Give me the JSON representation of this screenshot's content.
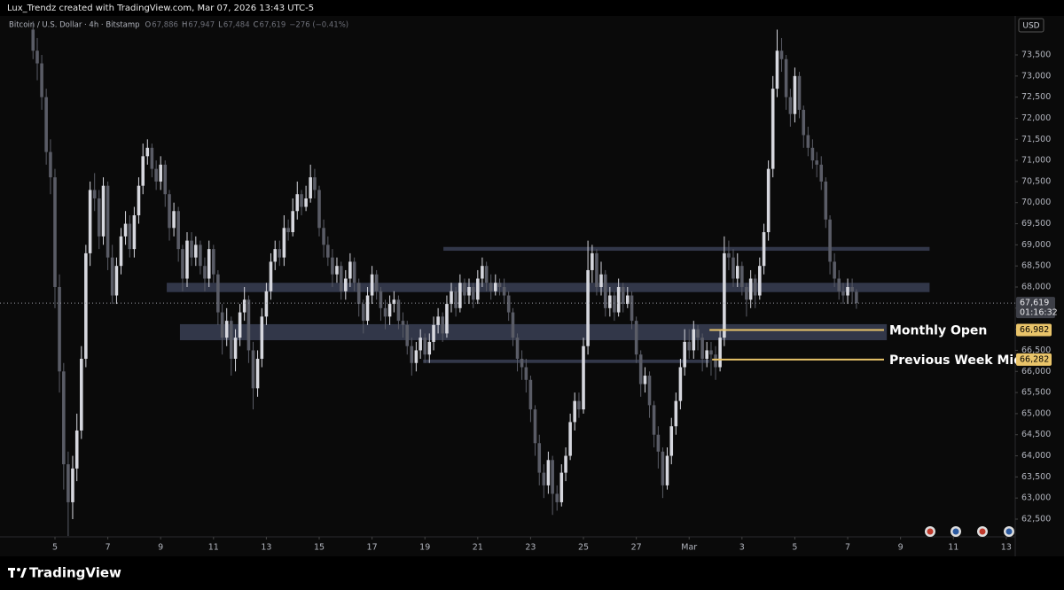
{
  "header": {
    "credit": "Lux_Trendz created with TradingView.com, Mar 07, 2026 13:43 UTC-5",
    "symbol": "Bitcoin / U.S. Dollar · 4h · Bitstamp",
    "ohlc": [
      [
        "O",
        "67,886"
      ],
      [
        "H",
        "67,947"
      ],
      [
        "L",
        "67,484"
      ],
      [
        "C",
        "67,619"
      ]
    ],
    "change": "−276 (−0.41%)"
  },
  "footer": {
    "brand": "TradingView"
  },
  "chart_data": {
    "type": "candlestick",
    "currency": "USD",
    "up_color": "#d6d7de",
    "down_color": "#5a5c66",
    "x": [
      4.17,
      4.33,
      4.5,
      4.67,
      4.83,
      5,
      5.17,
      5.33,
      5.5,
      5.67,
      5.83,
      6,
      6.17,
      6.33,
      6.5,
      6.67,
      6.83,
      7,
      7.17,
      7.33,
      7.5,
      7.67,
      7.83,
      8,
      8.17,
      8.33,
      8.5,
      8.67,
      8.83,
      9,
      9.17,
      9.33,
      9.5,
      9.67,
      9.83,
      10,
      10.17,
      10.33,
      10.5,
      10.67,
      10.83,
      11,
      11.17,
      11.33,
      11.5,
      11.67,
      11.83,
      12,
      12.17,
      12.33,
      12.5,
      12.67,
      12.83,
      13,
      13.17,
      13.33,
      13.5,
      13.67,
      13.83,
      14,
      14.17,
      14.33,
      14.5,
      14.67,
      14.83,
      15,
      15.17,
      15.33,
      15.5,
      15.67,
      15.83,
      16,
      16.17,
      16.33,
      16.5,
      16.67,
      16.83,
      17,
      17.17,
      17.33,
      17.5,
      17.67,
      17.83,
      18,
      18.17,
      18.33,
      18.5,
      18.67,
      18.83,
      19,
      19.17,
      19.33,
      19.5,
      19.67,
      19.83,
      20,
      20.17,
      20.33,
      20.5,
      20.67,
      20.83,
      21,
      21.17,
      21.33,
      21.5,
      21.67,
      21.83,
      22,
      22.17,
      22.33,
      22.5,
      22.67,
      22.83,
      23,
      23.17,
      23.33,
      23.5,
      23.67,
      23.83,
      24,
      24.17,
      24.33,
      24.5,
      24.67,
      24.83,
      25,
      25.17,
      25.33,
      25.5,
      25.67,
      25.83,
      26,
      26.17,
      26.33,
      26.5,
      26.67,
      26.83,
      27,
      27.17,
      27.33,
      27.5,
      27.67,
      27.83,
      28,
      28.17,
      28.33,
      28.5,
      28.67,
      28.83,
      29,
      29.17,
      29.33,
      29.5,
      29.67,
      29.83,
      30,
      30.17,
      30.33,
      30.5,
      30.67,
      30.83,
      31,
      31.17,
      31.33,
      31.5,
      31.67,
      31.83,
      32,
      32.17,
      32.33,
      32.5,
      32.67,
      32.83,
      33,
      33.17,
      33.33,
      33.5,
      33.67,
      33.83,
      34,
      34.17,
      34.33,
      34.5,
      34.67,
      34.83,
      35,
      35.17,
      35.33
    ],
    "open": [
      74100,
      73600,
      73300,
      72500,
      71200,
      70600,
      68000,
      66000,
      63800,
      62900,
      63700,
      64600,
      66300,
      68800,
      70300,
      70100,
      69200,
      70400,
      68700,
      67800,
      68500,
      69200,
      69500,
      68900,
      69700,
      70400,
      71100,
      71300,
      70800,
      70500,
      70900,
      70200,
      69400,
      69800,
      68900,
      68200,
      69100,
      68700,
      69000,
      68500,
      68200,
      68900,
      68300,
      67400,
      66800,
      67200,
      66300,
      66800,
      67400,
      67700,
      66500,
      65600,
      66300,
      67300,
      67900,
      68600,
      68900,
      68700,
      69400,
      69300,
      69800,
      70200,
      69900,
      70100,
      70600,
      70300,
      69400,
      69000,
      68700,
      68300,
      68500,
      67900,
      68200,
      68600,
      68100,
      67600,
      67200,
      67800,
      68300,
      67900,
      67500,
      67300,
      67600,
      67700,
      67200,
      67100,
      66600,
      66200,
      66500,
      66800,
      66400,
      66700,
      67100,
      67300,
      66900,
      67600,
      67900,
      67500,
      68100,
      67800,
      68000,
      67700,
      68200,
      68500,
      68100,
      67900,
      68100,
      68000,
      67800,
      67400,
      66800,
      66300,
      66100,
      65800,
      65100,
      64300,
      63600,
      63300,
      63900,
      63100,
      62900,
      63600,
      64000,
      64800,
      65300,
      65100,
      66600,
      68400,
      68800,
      68000,
      68300,
      67500,
      67800,
      67400,
      68000,
      67600,
      67800,
      67200,
      66400,
      65700,
      65900,
      65200,
      64500,
      64100,
      63300,
      64000,
      64700,
      65300,
      66100,
      66700,
      66500,
      67000,
      66800,
      66300,
      66500,
      66400,
      66100,
      66800,
      68800,
      68700,
      68200,
      68500,
      68000,
      67700,
      68200,
      67800,
      68500,
      69300,
      70800,
      72700,
      73600,
      73400,
      72500,
      72100,
      73000,
      72200,
      71600,
      71300,
      71000,
      70900,
      70500,
      69600,
      68600,
      68200,
      67900,
      67800,
      68000,
      67886
    ],
    "high": [
      74300,
      73900,
      73500,
      72700,
      71500,
      70800,
      68300,
      66200,
      64100,
      64000,
      65000,
      66600,
      69000,
      70500,
      70700,
      70300,
      70600,
      70500,
      69000,
      68700,
      69400,
      69800,
      69700,
      69900,
      70600,
      71400,
      71500,
      71400,
      71000,
      71100,
      71000,
      70300,
      70000,
      69900,
      69000,
      69300,
      69300,
      69200,
      69100,
      68700,
      69100,
      69000,
      68400,
      67600,
      67500,
      67300,
      67000,
      67600,
      68000,
      67800,
      66700,
      66500,
      67500,
      68100,
      68800,
      69100,
      69100,
      69700,
      69600,
      70100,
      70500,
      70300,
      70400,
      70900,
      70800,
      70400,
      69600,
      69200,
      68900,
      68700,
      68600,
      68400,
      68800,
      68700,
      68200,
      67700,
      68000,
      68500,
      68400,
      68000,
      67700,
      67800,
      67900,
      67800,
      67400,
      67200,
      66800,
      66700,
      67000,
      66900,
      66900,
      67300,
      67500,
      67400,
      67800,
      68100,
      68000,
      68300,
      68200,
      68200,
      68100,
      68400,
      68700,
      68600,
      68300,
      68300,
      68200,
      68200,
      67900,
      67500,
      66900,
      66500,
      66300,
      65900,
      65200,
      64500,
      63800,
      64100,
      64000,
      63300,
      63800,
      64200,
      65000,
      65500,
      65500,
      66800,
      69100,
      69000,
      68900,
      68600,
      68400,
      68000,
      67900,
      68200,
      68100,
      68000,
      67900,
      67300,
      66500,
      66100,
      66000,
      65300,
      64700,
      64200,
      64200,
      64900,
      65500,
      66300,
      67000,
      67000,
      67200,
      67100,
      66900,
      66700,
      66700,
      66600,
      67000,
      69200,
      69100,
      68900,
      68800,
      68600,
      68100,
      68400,
      68300,
      68700,
      69500,
      71000,
      73000,
      74100,
      73900,
      73500,
      72700,
      73200,
      73100,
      72300,
      71800,
      71500,
      71200,
      71100,
      70600,
      69700,
      68800,
      68400,
      68100,
      68200,
      68200,
      67947
    ],
    "low": [
      73400,
      72900,
      72200,
      70900,
      70200,
      67500,
      65500,
      63200,
      62100,
      62500,
      63400,
      64400,
      66100,
      68500,
      69800,
      68900,
      69000,
      68400,
      67600,
      67600,
      68300,
      69000,
      68700,
      68700,
      69500,
      70200,
      70900,
      70600,
      70300,
      70300,
      69900,
      69100,
      69200,
      68600,
      67900,
      68000,
      68500,
      68500,
      68300,
      67900,
      68000,
      68100,
      67100,
      66400,
      66600,
      65900,
      66000,
      66600,
      67200,
      66200,
      65100,
      65400,
      66100,
      67100,
      67700,
      68400,
      68500,
      68500,
      69100,
      69200,
      69600,
      69700,
      69800,
      70000,
      70100,
      69200,
      68700,
      68500,
      68000,
      68100,
      67700,
      67700,
      68000,
      67900,
      67300,
      66900,
      67100,
      67600,
      67700,
      67200,
      67000,
      67100,
      67400,
      67000,
      66800,
      66400,
      65900,
      66000,
      66300,
      66200,
      66200,
      66500,
      66900,
      66700,
      66800,
      67400,
      67300,
      67400,
      67600,
      67600,
      67500,
      67600,
      68000,
      67900,
      67700,
      67800,
      67800,
      67600,
      67200,
      66600,
      66000,
      65800,
      65500,
      64800,
      64000,
      63300,
      63000,
      63100,
      62600,
      62700,
      62800,
      63400,
      63900,
      64600,
      64900,
      65000,
      66400,
      68100,
      67800,
      67800,
      67300,
      67300,
      67200,
      67300,
      67400,
      67500,
      67000,
      66200,
      65400,
      65500,
      64900,
      64200,
      63700,
      63000,
      63200,
      63800,
      64500,
      65100,
      65900,
      66300,
      66300,
      66500,
      66000,
      66100,
      65900,
      65800,
      66000,
      66600,
      68400,
      68000,
      68000,
      67800,
      67300,
      67500,
      67500,
      67700,
      68300,
      69100,
      70600,
      72500,
      73100,
      72200,
      71800,
      71900,
      72000,
      71300,
      71100,
      70800,
      70600,
      70300,
      69400,
      68300,
      68000,
      67700,
      67600,
      67600,
      67600,
      67484
    ],
    "close": [
      73600,
      73300,
      72500,
      71200,
      70600,
      68000,
      66000,
      63800,
      62900,
      63700,
      64600,
      66300,
      68800,
      70300,
      70100,
      69200,
      70400,
      68700,
      67800,
      68500,
      69200,
      69500,
      68900,
      69700,
      70400,
      71100,
      71300,
      70800,
      70500,
      70900,
      70200,
      69400,
      69800,
      68900,
      68200,
      69100,
      68700,
      69000,
      68500,
      68200,
      68900,
      68300,
      67400,
      66800,
      67200,
      66300,
      66800,
      67400,
      67700,
      66500,
      65600,
      66300,
      67300,
      67900,
      68600,
      68900,
      68700,
      69400,
      69300,
      69800,
      70200,
      69900,
      70100,
      70600,
      70300,
      69400,
      69000,
      68700,
      68300,
      68500,
      67900,
      68200,
      68600,
      68100,
      67600,
      67200,
      67800,
      68300,
      67900,
      67500,
      67300,
      67600,
      67700,
      67200,
      67100,
      66600,
      66200,
      66500,
      66800,
      66400,
      66700,
      67100,
      67300,
      66900,
      67600,
      67900,
      67500,
      68100,
      67800,
      68000,
      67700,
      68200,
      68500,
      68100,
      67900,
      68100,
      68000,
      67800,
      67400,
      66800,
      66300,
      66100,
      65800,
      65100,
      64300,
      63600,
      63300,
      63900,
      63100,
      62900,
      63600,
      64000,
      64800,
      65300,
      65100,
      66600,
      68400,
      68800,
      68000,
      68300,
      67500,
      67800,
      67400,
      68000,
      67600,
      67800,
      67200,
      66400,
      65700,
      65900,
      65200,
      64500,
      64100,
      63300,
      64000,
      64700,
      65300,
      66100,
      66700,
      66500,
      67000,
      66800,
      66300,
      66500,
      66400,
      66100,
      66800,
      68800,
      68700,
      68200,
      68500,
      68000,
      67700,
      68200,
      67800,
      68500,
      69300,
      70800,
      72700,
      73600,
      73400,
      72500,
      72100,
      73000,
      72200,
      71600,
      71300,
      71000,
      70900,
      70500,
      69600,
      68600,
      68200,
      67900,
      67800,
      68000,
      67895,
      67619
    ],
    "last_price_label": "67,619",
    "countdown": "01:16:32",
    "zone_color": "#363c50",
    "zones": [
      {
        "x0": 19.7,
        "x1": 38.1,
        "top": 68950,
        "bottom": 68860
      },
      {
        "x0": 9.23,
        "x1": 38.1,
        "top": 68100,
        "bottom": 67880
      },
      {
        "x0": 9.73,
        "x1": 36.48,
        "top": 67120,
        "bottom": 66740
      },
      {
        "x0": 18.93,
        "x1": 29.77,
        "top": 66280,
        "bottom": 66200
      }
    ],
    "level_color": "#e9c46a",
    "levels": [
      {
        "label": "Monthly Open",
        "value": 66982,
        "value_label": "66,982",
        "x0": 29.77
      },
      {
        "label": "Previous Week Mid",
        "value": 66282,
        "value_label": "66,282",
        "x0": 29.87
      }
    ],
    "xlim": [
      2.92,
      41.24
    ],
    "xticks": [
      5,
      7,
      9,
      11,
      13,
      15,
      17,
      19,
      21,
      23,
      25,
      27,
      {
        "value": 29,
        "label": "Mar"
      },
      {
        "value": 31,
        "label": "3"
      },
      {
        "value": 33,
        "label": "5"
      },
      {
        "value": 35,
        "label": "7"
      },
      {
        "value": 37,
        "label": "9"
      },
      {
        "value": 39,
        "label": "11"
      },
      {
        "value": 41,
        "label": "13"
      }
    ],
    "ylim": [
      62080,
      74424
    ],
    "yticks": [
      {
        "value": 62500,
        "label": "62,500"
      },
      {
        "value": 63000,
        "label": "63,000"
      },
      {
        "value": 63500,
        "label": "63,500"
      },
      {
        "value": 64000,
        "label": "64,000"
      },
      {
        "value": 64500,
        "label": "64,500"
      },
      {
        "value": 65000,
        "label": "65,000"
      },
      {
        "value": 65500,
        "label": "65,500"
      },
      {
        "value": 66000,
        "label": "66,000"
      },
      {
        "value": 66500,
        "label": "66,500"
      },
      {
        "value": 67000,
        "label": "67,000"
      },
      {
        "value": 67500,
        "label": "67,500"
      },
      {
        "value": 68000,
        "label": "68,000"
      },
      {
        "value": 68500,
        "label": "68,500"
      },
      {
        "value": 69000,
        "label": "69,000"
      },
      {
        "value": 69500,
        "label": "69,500"
      },
      {
        "value": 70000,
        "label": "70,000"
      },
      {
        "value": 70500,
        "label": "70,500"
      },
      {
        "value": 71000,
        "label": "71,000"
      },
      {
        "value": 71500,
        "label": "71,500"
      },
      {
        "value": 72000,
        "label": "72,000"
      },
      {
        "value": 72500,
        "label": "72,500"
      },
      {
        "value": 73000,
        "label": "73,000"
      },
      {
        "value": 73500,
        "label": "73,500"
      }
    ],
    "grid": false
  }
}
